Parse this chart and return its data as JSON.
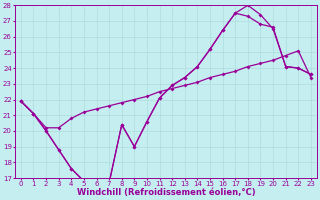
{
  "xlabel": "Windchill (Refroidissement éolien,°C)",
  "xlim": [
    -0.5,
    23.5
  ],
  "ylim": [
    17,
    28
  ],
  "xticks": [
    0,
    1,
    2,
    3,
    4,
    5,
    6,
    7,
    8,
    9,
    10,
    11,
    12,
    13,
    14,
    15,
    16,
    17,
    18,
    19,
    20,
    21,
    22,
    23
  ],
  "yticks": [
    17,
    18,
    19,
    20,
    21,
    22,
    23,
    24,
    25,
    26,
    27,
    28
  ],
  "bg_color": "#c5eef0",
  "grid_color": "#b0dcdc",
  "line_color": "#990099",
  "line1_x": [
    0,
    1,
    2,
    3,
    4,
    5,
    6,
    7,
    8,
    9,
    10,
    11,
    12,
    13,
    14,
    15,
    16,
    17,
    18,
    19,
    20,
    21,
    22,
    23
  ],
  "line1_y": [
    21.9,
    21.1,
    20.0,
    18.8,
    17.6,
    16.8,
    16.8,
    16.7,
    20.4,
    19.0,
    20.6,
    22.1,
    22.9,
    23.4,
    24.1,
    25.2,
    26.4,
    27.5,
    28.0,
    27.4,
    26.5,
    24.1,
    24.0,
    23.6
  ],
  "line2_x": [
    0,
    1,
    2,
    3,
    4,
    5,
    6,
    7,
    8,
    9,
    10,
    11,
    12,
    13,
    14,
    15,
    16,
    17,
    18,
    19,
    20,
    21,
    22,
    23
  ],
  "line2_y": [
    21.9,
    21.1,
    20.0,
    18.8,
    17.6,
    16.8,
    16.8,
    16.7,
    20.4,
    19.0,
    20.6,
    22.1,
    22.9,
    23.4,
    24.1,
    25.2,
    26.4,
    27.5,
    27.3,
    26.8,
    26.6,
    24.1,
    24.0,
    23.6
  ],
  "line3_x": [
    0,
    1,
    2,
    3,
    4,
    5,
    6,
    7,
    8,
    9,
    10,
    11,
    12,
    13,
    14,
    15,
    16,
    17,
    18,
    19,
    20,
    21,
    22,
    23
  ],
  "line3_y": [
    21.9,
    21.1,
    20.2,
    20.2,
    20.8,
    21.2,
    21.4,
    21.6,
    21.8,
    22.0,
    22.2,
    22.5,
    22.7,
    22.9,
    23.1,
    23.4,
    23.6,
    23.8,
    24.1,
    24.3,
    24.5,
    24.8,
    25.1,
    23.4
  ],
  "markersize": 2.0,
  "linewidth": 0.9,
  "tick_fontsize": 5.0,
  "xlabel_fontsize": 6.0
}
